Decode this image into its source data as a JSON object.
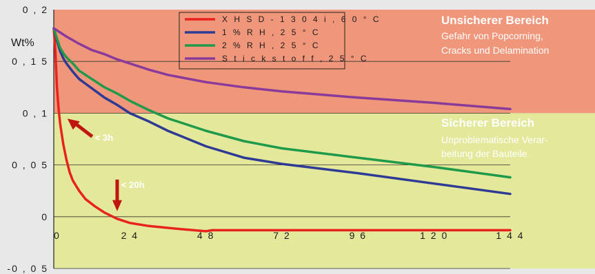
{
  "chart_data": {
    "type": "line",
    "ylabel": "Wt%",
    "xlabel": "",
    "xlim": [
      0,
      144
    ],
    "ylim": [
      -0.05,
      0.2
    ],
    "x_ticks": [
      "0",
      "2 4",
      "4 8",
      "7 2",
      "9 6",
      "1 2 0",
      "1 4 4"
    ],
    "x_tick_values": [
      0,
      24,
      48,
      72,
      96,
      120,
      144
    ],
    "y_ticks": [
      "0 , 2",
      "0 , 1 5",
      "0 , 1",
      "0 , 0 5",
      "0",
      "-0 , 0 5"
    ],
    "y_tick_values": [
      0.2,
      0.15,
      0.1,
      0.05,
      0,
      -0.05
    ],
    "grid": "horizontal",
    "legend_position": "top-center",
    "zones": [
      {
        "title": "Unsicherer Bereich",
        "lines": [
          "Gefahr von Popcorning,",
          "Cracks und Delamination"
        ],
        "y_from": 0.1,
        "y_to": 0.2,
        "color": "#f0967a"
      },
      {
        "title": "Sicherer Bereich",
        "lines": [
          "Unproblematische Verar-",
          "beitung der Bauteile"
        ],
        "y_from": -0.05,
        "y_to": 0.1,
        "color": "#e3e89a"
      }
    ],
    "series": [
      {
        "name": "X H S D - 1 3 0 4 i ,  6 0  ° C",
        "color": "#e8221c",
        "x": [
          0,
          0.5,
          1,
          1.5,
          2,
          3,
          4,
          5,
          6,
          8,
          10,
          13,
          16,
          20,
          24,
          30,
          40,
          48,
          50,
          60,
          72,
          96,
          120,
          144
        ],
        "y": [
          0.182,
          0.16,
          0.125,
          0.105,
          0.09,
          0.07,
          0.055,
          0.043,
          0.035,
          0.025,
          0.017,
          0.01,
          0.004,
          -0.002,
          -0.006,
          -0.009,
          -0.012,
          -0.014,
          -0.013,
          -0.013,
          -0.013,
          -0.013,
          -0.013,
          -0.013
        ]
      },
      {
        "name": "1  %  R H ,  2 5  ° C",
        "color": "#2e3a94",
        "x": [
          0,
          1,
          2,
          3,
          4,
          6,
          8,
          12,
          16,
          20,
          24,
          30,
          36,
          48,
          60,
          72,
          96,
          120,
          144
        ],
        "y": [
          0.182,
          0.17,
          0.16,
          0.153,
          0.148,
          0.14,
          0.133,
          0.124,
          0.115,
          0.108,
          0.1,
          0.092,
          0.083,
          0.068,
          0.057,
          0.051,
          0.042,
          0.032,
          0.022
        ]
      },
      {
        "name": "2  %  R H ,  2 5  ° C",
        "color": "#1e9a4a",
        "x": [
          0,
          1,
          2,
          3,
          4,
          6,
          8,
          12,
          16,
          20,
          24,
          30,
          36,
          48,
          60,
          72,
          96,
          120,
          144
        ],
        "y": [
          0.182,
          0.172,
          0.163,
          0.158,
          0.154,
          0.148,
          0.141,
          0.133,
          0.125,
          0.119,
          0.112,
          0.103,
          0.095,
          0.083,
          0.073,
          0.066,
          0.057,
          0.048,
          0.038
        ]
      },
      {
        "name": "S t i c k s t o f f ,  2 5  ° C",
        "color": "#8a3a9a",
        "x": [
          0,
          2,
          4,
          8,
          12,
          16,
          20,
          24,
          30,
          36,
          48,
          60,
          72,
          96,
          120,
          144
        ],
        "y": [
          0.182,
          0.178,
          0.174,
          0.167,
          0.161,
          0.157,
          0.152,
          0.148,
          0.142,
          0.137,
          0.13,
          0.125,
          0.121,
          0.115,
          0.11,
          0.104
        ]
      }
    ],
    "annotations": [
      {
        "text": "< 3h",
        "x": 3,
        "y": 0.1
      },
      {
        "text": "< 20h",
        "x": 20,
        "y": 0
      }
    ]
  }
}
